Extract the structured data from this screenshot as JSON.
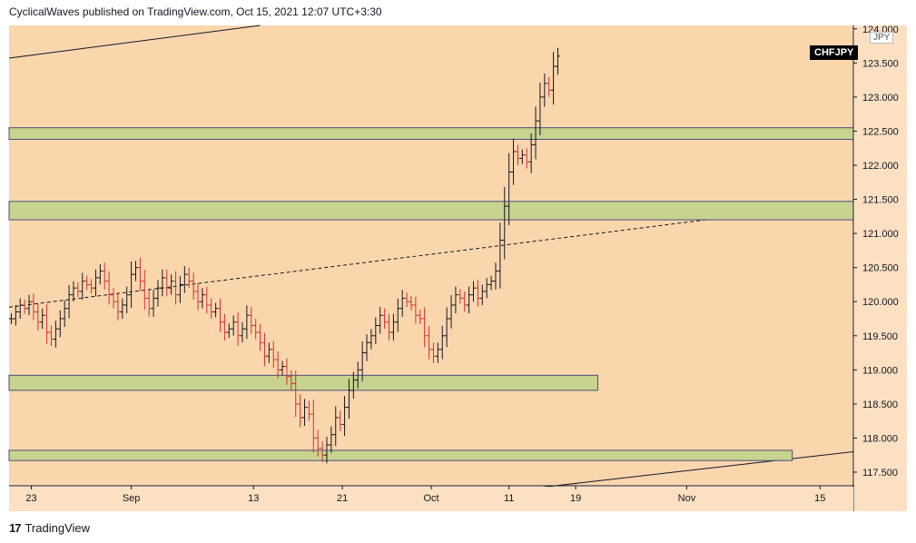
{
  "header": {
    "text": "CyclicalWaves published on TradingView.com, Oct 15, 2021 12:07 UTC+3:30"
  },
  "symbol": "CHFJPY",
  "currency": "JPY",
  "footer": {
    "logo": "17",
    "brand": "TradingView"
  },
  "colors": {
    "background": "#fad6ad",
    "zone_fill": "#c8d38f",
    "zone_border": "#4a4f7a",
    "up": "#131722",
    "down": "#d32f2f"
  },
  "chart_data": {
    "type": "candlestick",
    "ylim": [
      117.3,
      124.05
    ],
    "yticks": [
      {
        "label": "124.000",
        "v": 124.0
      },
      {
        "label": "123.500",
        "v": 123.5
      },
      {
        "label": "123.000",
        "v": 123.0
      },
      {
        "label": "122.500",
        "v": 122.5
      },
      {
        "label": "122.000",
        "v": 122.0
      },
      {
        "label": "121.500",
        "v": 121.5
      },
      {
        "label": "121.000",
        "v": 121.0
      },
      {
        "label": "120.500",
        "v": 120.5
      },
      {
        "label": "120.000",
        "v": 120.0
      },
      {
        "label": "119.500",
        "v": 119.5
      },
      {
        "label": "119.000",
        "v": 119.0
      },
      {
        "label": "118.500",
        "v": 118.5
      },
      {
        "label": "118.000",
        "v": 118.0
      },
      {
        "label": "117.500",
        "v": 117.5
      }
    ],
    "xticks": [
      {
        "label": "23",
        "t": 2
      },
      {
        "label": "Sep",
        "t": 11
      },
      {
        "label": "13",
        "t": 22
      },
      {
        "label": "21",
        "t": 30
      },
      {
        "label": "Oct",
        "t": 38
      },
      {
        "label": "11",
        "t": 45
      },
      {
        "label": "19",
        "t": 51
      },
      {
        "label": "Nov",
        "t": 61
      },
      {
        "label": "15",
        "t": 73
      }
    ],
    "zones": [
      {
        "y1": 122.55,
        "y2": 122.38,
        "t_end": "edge"
      },
      {
        "y1": 121.47,
        "y2": 121.2,
        "t_end": "edge"
      },
      {
        "y1": 118.92,
        "y2": 118.7,
        "t_end": 53.0
      },
      {
        "y1": 117.82,
        "y2": 117.67,
        "t_end": 70.5
      }
    ],
    "trendlines": [
      {
        "p1": [
          0,
          123.57
        ],
        "p2": [
          22.6,
          124.05
        ],
        "style": "solid"
      },
      {
        "p1": [
          47,
          117.26
        ],
        "p2": [
          76,
          117.8
        ],
        "style": "solid"
      },
      {
        "p1": [
          0,
          119.92
        ],
        "p2": [
          76,
          121.47
        ],
        "style": "dashed"
      }
    ],
    "closes": [
      {
        "t": 0.2,
        "c": 119.75
      },
      {
        "t": 0.6,
        "c": 119.85
      },
      {
        "t": 1.0,
        "c": 119.95
      },
      {
        "t": 1.4,
        "c": 119.9
      },
      {
        "t": 1.8,
        "c": 120.0
      },
      {
        "t": 2.2,
        "c": 119.85
      },
      {
        "t": 2.6,
        "c": 119.7
      },
      {
        "t": 3.0,
        "c": 119.8
      },
      {
        "t": 3.4,
        "c": 119.55
      },
      {
        "t": 3.8,
        "c": 119.45
      },
      {
        "t": 4.2,
        "c": 119.6
      },
      {
        "t": 4.6,
        "c": 119.75
      },
      {
        "t": 5.0,
        "c": 119.9
      },
      {
        "t": 5.4,
        "c": 120.1
      },
      {
        "t": 5.8,
        "c": 120.2
      },
      {
        "t": 6.2,
        "c": 120.15
      },
      {
        "t": 6.6,
        "c": 120.3
      },
      {
        "t": 7.0,
        "c": 120.25
      },
      {
        "t": 7.4,
        "c": 120.2
      },
      {
        "t": 7.8,
        "c": 120.35
      },
      {
        "t": 8.2,
        "c": 120.45
      },
      {
        "t": 8.6,
        "c": 120.3
      },
      {
        "t": 9.0,
        "c": 120.1
      },
      {
        "t": 9.4,
        "c": 120.0
      },
      {
        "t": 9.8,
        "c": 119.85
      },
      {
        "t": 10.2,
        "c": 119.95
      },
      {
        "t": 10.6,
        "c": 120.1
      },
      {
        "t": 11.0,
        "c": 120.4
      },
      {
        "t": 11.4,
        "c": 120.5
      },
      {
        "t": 11.8,
        "c": 120.3
      },
      {
        "t": 12.2,
        "c": 120.05
      },
      {
        "t": 12.6,
        "c": 119.9
      },
      {
        "t": 13.0,
        "c": 120.05
      },
      {
        "t": 13.4,
        "c": 120.2
      },
      {
        "t": 13.8,
        "c": 120.35
      },
      {
        "t": 14.2,
        "c": 120.2
      },
      {
        "t": 14.6,
        "c": 120.3
      },
      {
        "t": 15.0,
        "c": 120.1
      },
      {
        "t": 15.4,
        "c": 120.25
      },
      {
        "t": 15.8,
        "c": 120.4
      },
      {
        "t": 16.2,
        "c": 120.3
      },
      {
        "t": 16.6,
        "c": 120.15
      },
      {
        "t": 17.0,
        "c": 120.0
      },
      {
        "t": 17.4,
        "c": 120.1
      },
      {
        "t": 17.8,
        "c": 119.95
      },
      {
        "t": 18.2,
        "c": 119.85
      },
      {
        "t": 18.6,
        "c": 119.9
      },
      {
        "t": 19.0,
        "c": 119.7
      },
      {
        "t": 19.4,
        "c": 119.55
      },
      {
        "t": 19.8,
        "c": 119.6
      },
      {
        "t": 20.2,
        "c": 119.7
      },
      {
        "t": 20.6,
        "c": 119.5
      },
      {
        "t": 21.0,
        "c": 119.6
      },
      {
        "t": 21.4,
        "c": 119.8
      },
      {
        "t": 21.8,
        "c": 119.65
      },
      {
        "t": 22.2,
        "c": 119.55
      },
      {
        "t": 22.6,
        "c": 119.4
      },
      {
        "t": 23.0,
        "c": 119.2
      },
      {
        "t": 23.4,
        "c": 119.3
      },
      {
        "t": 23.8,
        "c": 119.15
      },
      {
        "t": 24.2,
        "c": 119.0
      },
      {
        "t": 24.6,
        "c": 119.05
      },
      {
        "t": 25.0,
        "c": 118.9
      },
      {
        "t": 25.4,
        "c": 118.8
      },
      {
        "t": 25.8,
        "c": 118.5
      },
      {
        "t": 26.2,
        "c": 118.3
      },
      {
        "t": 26.6,
        "c": 118.45
      },
      {
        "t": 27.0,
        "c": 118.35
      },
      {
        "t": 27.4,
        "c": 118.0
      },
      {
        "t": 27.8,
        "c": 117.85
      },
      {
        "t": 28.2,
        "c": 117.75
      },
      {
        "t": 28.6,
        "c": 117.9
      },
      {
        "t": 29.0,
        "c": 118.05
      },
      {
        "t": 29.4,
        "c": 118.3
      },
      {
        "t": 29.8,
        "c": 118.2
      },
      {
        "t": 30.2,
        "c": 118.45
      },
      {
        "t": 30.6,
        "c": 118.7
      },
      {
        "t": 31.0,
        "c": 118.85
      },
      {
        "t": 31.4,
        "c": 119.0
      },
      {
        "t": 31.8,
        "c": 119.25
      },
      {
        "t": 32.2,
        "c": 119.4
      },
      {
        "t": 32.6,
        "c": 119.5
      },
      {
        "t": 33.0,
        "c": 119.65
      },
      {
        "t": 33.4,
        "c": 119.8
      },
      {
        "t": 33.8,
        "c": 119.7
      },
      {
        "t": 34.2,
        "c": 119.55
      },
      {
        "t": 34.6,
        "c": 119.7
      },
      {
        "t": 35.0,
        "c": 119.9
      },
      {
        "t": 35.4,
        "c": 120.05
      },
      {
        "t": 35.8,
        "c": 120.0
      },
      {
        "t": 36.2,
        "c": 119.95
      },
      {
        "t": 36.6,
        "c": 119.8
      },
      {
        "t": 37.0,
        "c": 119.75
      },
      {
        "t": 37.4,
        "c": 119.5
      },
      {
        "t": 37.8,
        "c": 119.3
      },
      {
        "t": 38.2,
        "c": 119.2
      },
      {
        "t": 38.6,
        "c": 119.3
      },
      {
        "t": 39.0,
        "c": 119.5
      },
      {
        "t": 39.4,
        "c": 119.75
      },
      {
        "t": 39.8,
        "c": 119.95
      },
      {
        "t": 40.2,
        "c": 120.1
      },
      {
        "t": 40.6,
        "c": 120.05
      },
      {
        "t": 41.0,
        "c": 119.95
      },
      {
        "t": 41.4,
        "c": 120.1
      },
      {
        "t": 41.8,
        "c": 120.2
      },
      {
        "t": 42.2,
        "c": 120.05
      },
      {
        "t": 42.6,
        "c": 120.15
      },
      {
        "t": 43.0,
        "c": 120.25
      },
      {
        "t": 43.4,
        "c": 120.3
      },
      {
        "t": 43.8,
        "c": 120.45
      },
      {
        "t": 44.2,
        "c": 120.9
      },
      {
        "t": 44.6,
        "c": 121.4
      },
      {
        "t": 45.0,
        "c": 121.9
      },
      {
        "t": 45.4,
        "c": 122.2
      },
      {
        "t": 45.8,
        "c": 122.1
      },
      {
        "t": 46.2,
        "c": 122.15
      },
      {
        "t": 46.6,
        "c": 122.05
      },
      {
        "t": 47.0,
        "c": 122.3
      },
      {
        "t": 47.4,
        "c": 122.65
      },
      {
        "t": 47.8,
        "c": 123.0
      },
      {
        "t": 48.2,
        "c": 123.2
      },
      {
        "t": 48.6,
        "c": 123.1
      },
      {
        "t": 49.0,
        "c": 123.45
      },
      {
        "t": 49.4,
        "c": 123.6
      }
    ]
  }
}
